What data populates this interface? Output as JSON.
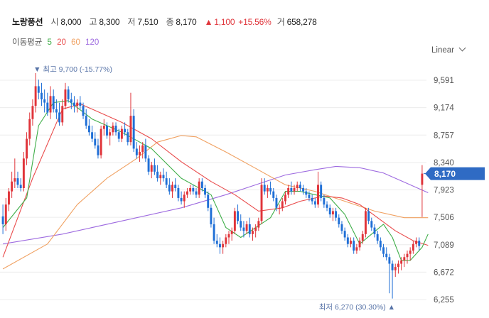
{
  "header": {
    "name": "노랑풍선",
    "open_label": "시",
    "open": "8,000",
    "high_label": "고",
    "high": "8,300",
    "low_label": "저",
    "low": "7,510",
    "close_label": "종",
    "close": "8,170",
    "change_arrow": "▲",
    "change": "1,100",
    "change_pct": "+15.56%",
    "volume_label": "거",
    "volume": "658,278"
  },
  "ma_legend": {
    "label": "이동평균",
    "items": [
      {
        "period": "5",
        "color": "#3fae49"
      },
      {
        "period": "20",
        "color": "#e94b4b"
      },
      {
        "period": "60",
        "color": "#f0a060"
      },
      {
        "period": "120",
        "color": "#9e6be0"
      }
    ]
  },
  "scale_mode": "Linear",
  "colors": {
    "up": "#e0343a",
    "down": "#1f6fd6",
    "badge": "#2f6bc4",
    "annot": "#5773a7",
    "grid": "#ececec"
  },
  "chart_data": {
    "type": "candlestick",
    "y_ticks": [
      "9,591",
      "9,174",
      "8,757",
      "8,340",
      "7,923",
      "7,506",
      "7,089",
      "6,672",
      "6,255"
    ],
    "y_tick_values": [
      9591,
      9174,
      8757,
      8340,
      7923,
      7506,
      7089,
      6672,
      6255
    ],
    "ylim": [
      6150,
      9900
    ],
    "last_price": 8170,
    "last_price_label": "8,170",
    "high_annotation": {
      "arrow": "▼",
      "text": "최고 9,700 (-15.77%)",
      "value": 9700,
      "index": 11
    },
    "low_annotation": {
      "arrow": "▲",
      "text": "최저 6,270 (30.30%)",
      "value": 6270,
      "index": 131
    },
    "candles": [
      [
        7520,
        7700,
        7250,
        7400
      ],
      [
        7400,
        7800,
        7300,
        7700
      ],
      [
        7700,
        7950,
        7600,
        7900
      ],
      [
        7900,
        8200,
        7800,
        8050
      ],
      [
        8050,
        8400,
        7950,
        8100
      ],
      [
        8100,
        8200,
        7950,
        8000
      ],
      [
        8000,
        8100,
        7900,
        7950
      ],
      [
        7950,
        8500,
        7900,
        8400
      ],
      [
        8400,
        8800,
        8300,
        8700
      ],
      [
        8700,
        9100,
        8600,
        9000
      ],
      [
        9000,
        9300,
        8900,
        9200
      ],
      [
        9200,
        9700,
        9100,
        9500
      ],
      [
        9500,
        9600,
        9300,
        9400
      ],
      [
        9400,
        9550,
        9200,
        9300
      ],
      [
        9300,
        9450,
        9100,
        9250
      ],
      [
        9250,
        9400,
        9050,
        9100
      ],
      [
        9100,
        9500,
        9000,
        9350
      ],
      [
        9350,
        9450,
        9100,
        9150
      ],
      [
        9150,
        9300,
        9000,
        9100
      ],
      [
        9100,
        9250,
        8900,
        8950
      ],
      [
        8950,
        9300,
        8900,
        9200
      ],
      [
        9200,
        9550,
        9150,
        9450
      ],
      [
        9450,
        9500,
        9250,
        9300
      ],
      [
        9300,
        9400,
        9150,
        9250
      ],
      [
        9250,
        9350,
        9100,
        9200
      ],
      [
        9200,
        9300,
        9100,
        9250
      ],
      [
        9250,
        9350,
        9150,
        9200
      ],
      [
        9200,
        9250,
        9000,
        9050
      ],
      [
        9050,
        9150,
        8850,
        8900
      ],
      [
        8900,
        9000,
        8750,
        8800
      ],
      [
        8800,
        8900,
        8650,
        8700
      ],
      [
        8700,
        8800,
        8550,
        8600
      ],
      [
        8600,
        8700,
        8400,
        8450
      ],
      [
        8450,
        8900,
        8400,
        8850
      ],
      [
        8850,
        9000,
        8750,
        8900
      ],
      [
        8900,
        8950,
        8700,
        8750
      ],
      [
        8750,
        8850,
        8600,
        8800
      ],
      [
        8800,
        8950,
        8750,
        8900
      ],
      [
        8900,
        8950,
        8750,
        8800
      ],
      [
        8800,
        8850,
        8650,
        8700
      ],
      [
        8700,
        8900,
        8650,
        8850
      ],
      [
        8850,
        8950,
        8750,
        8800
      ],
      [
        8800,
        8850,
        8600,
        8650
      ],
      [
        8650,
        9400,
        8600,
        9050
      ],
      [
        9050,
        9150,
        8500,
        8550
      ],
      [
        8550,
        8650,
        8400,
        8450
      ],
      [
        8450,
        8600,
        8350,
        8500
      ],
      [
        8500,
        8650,
        8400,
        8600
      ],
      [
        8600,
        8700,
        8350,
        8400
      ],
      [
        8400,
        8450,
        8150,
        8200
      ],
      [
        8200,
        8350,
        8100,
        8300
      ],
      [
        8300,
        8400,
        8150,
        8200
      ],
      [
        8200,
        8300,
        8050,
        8100
      ],
      [
        8100,
        8200,
        8000,
        8150
      ],
      [
        8150,
        8250,
        8050,
        8100
      ],
      [
        8100,
        8200,
        7950,
        8000
      ],
      [
        8000,
        8100,
        7850,
        7900
      ],
      [
        7900,
        8050,
        7800,
        8000
      ],
      [
        8000,
        8100,
        7900,
        7950
      ],
      [
        7950,
        8000,
        7750,
        7800
      ],
      [
        7800,
        7900,
        7700,
        7750
      ],
      [
        7750,
        7900,
        7650,
        7850
      ],
      [
        7850,
        7950,
        7800,
        7900
      ],
      [
        7900,
        8000,
        7850,
        7950
      ],
      [
        7950,
        8000,
        7850,
        7900
      ],
      [
        7900,
        7950,
        7800,
        7850
      ],
      [
        7850,
        8100,
        7800,
        8050
      ],
      [
        8050,
        8100,
        7900,
        7950
      ],
      [
        7950,
        8000,
        7800,
        7850
      ],
      [
        7850,
        7900,
        7600,
        7650
      ],
      [
        7650,
        7700,
        7350,
        7400
      ],
      [
        7400,
        7500,
        7100,
        7150
      ],
      [
        7150,
        7250,
        7050,
        7100
      ],
      [
        7100,
        7200,
        6950,
        7050
      ],
      [
        7050,
        7150,
        6950,
        7100
      ],
      [
        7100,
        7250,
        7050,
        7200
      ],
      [
        7200,
        7300,
        7100,
        7250
      ],
      [
        7250,
        7350,
        7150,
        7300
      ],
      [
        7300,
        7650,
        7250,
        7600
      ],
      [
        7600,
        7700,
        7400,
        7450
      ],
      [
        7450,
        7550,
        7300,
        7350
      ],
      [
        7350,
        7450,
        7200,
        7300
      ],
      [
        7300,
        7450,
        7250,
        7400
      ],
      [
        7400,
        7500,
        7200,
        7250
      ],
      [
        7250,
        7350,
        7150,
        7300
      ],
      [
        7300,
        7400,
        7200,
        7350
      ],
      [
        7350,
        7500,
        7300,
        7450
      ],
      [
        7450,
        8100,
        7400,
        8000
      ],
      [
        8000,
        8100,
        7850,
        7900
      ],
      [
        7900,
        8000,
        7800,
        7950
      ],
      [
        7950,
        8050,
        7850,
        7900
      ],
      [
        7900,
        7950,
        7750,
        7800
      ],
      [
        7800,
        7850,
        7600,
        7650
      ],
      [
        7650,
        7700,
        7550,
        7650
      ],
      [
        7650,
        7800,
        7600,
        7750
      ],
      [
        7750,
        7900,
        7700,
        7850
      ],
      [
        7850,
        8000,
        7800,
        7950
      ],
      [
        7950,
        8050,
        7850,
        7900
      ],
      [
        7900,
        8000,
        7850,
        7950
      ],
      [
        7950,
        8050,
        7900,
        8000
      ],
      [
        8000,
        8050,
        7900,
        7950
      ],
      [
        7950,
        8000,
        7850,
        7900
      ],
      [
        7900,
        7950,
        7800,
        7850
      ],
      [
        7850,
        7900,
        7750,
        7800
      ],
      [
        7800,
        7850,
        7700,
        7750
      ],
      [
        7750,
        7800,
        7650,
        7700
      ],
      [
        7700,
        8200,
        7650,
        8000
      ],
      [
        8000,
        8050,
        7750,
        7800
      ],
      [
        7800,
        7850,
        7650,
        7700
      ],
      [
        7700,
        7750,
        7600,
        7650
      ],
      [
        7650,
        7700,
        7500,
        7550
      ],
      [
        7550,
        7650,
        7450,
        7600
      ],
      [
        7600,
        7650,
        7450,
        7500
      ],
      [
        7500,
        7550,
        7350,
        7400
      ],
      [
        7400,
        7450,
        7250,
        7300
      ],
      [
        7300,
        7350,
        7150,
        7200
      ],
      [
        7200,
        7250,
        7050,
        7100
      ],
      [
        7100,
        7200,
        7050,
        7150
      ],
      [
        7150,
        7200,
        6950,
        7000
      ],
      [
        7000,
        7100,
        6950,
        7050
      ],
      [
        7050,
        7200,
        7000,
        7150
      ],
      [
        7150,
        7300,
        7100,
        7250
      ],
      [
        7250,
        7650,
        7200,
        7600
      ],
      [
        7600,
        7650,
        7400,
        7450
      ],
      [
        7450,
        7500,
        7300,
        7350
      ],
      [
        7350,
        7400,
        7200,
        7250
      ],
      [
        7250,
        7300,
        7100,
        7150
      ],
      [
        7150,
        7200,
        7000,
        7050
      ],
      [
        7050,
        7100,
        6900,
        6950
      ],
      [
        6950,
        7050,
        6850,
        6900
      ],
      [
        6900,
        6950,
        6350,
        6800
      ],
      [
        6800,
        6850,
        6270,
        6700
      ],
      [
        6700,
        6800,
        6600,
        6750
      ],
      [
        6750,
        6850,
        6650,
        6800
      ],
      [
        6800,
        6900,
        6700,
        6850
      ],
      [
        6850,
        6950,
        6750,
        6900
      ],
      [
        6900,
        7000,
        6800,
        6950
      ],
      [
        6950,
        7050,
        6850,
        7000
      ],
      [
        7000,
        7150,
        6950,
        7100
      ],
      [
        7100,
        7200,
        7050,
        7150
      ],
      [
        7150,
        7200,
        7000,
        7070
      ],
      [
        8000,
        8300,
        7510,
        8170
      ]
    ],
    "ma5": [
      [
        0,
        7350
      ],
      [
        8,
        7800
      ],
      [
        12,
        8900
      ],
      [
        17,
        9250
      ],
      [
        22,
        9280
      ],
      [
        30,
        9000
      ],
      [
        40,
        8800
      ],
      [
        50,
        8550
      ],
      [
        60,
        8100
      ],
      [
        70,
        7850
      ],
      [
        75,
        7350
      ],
      [
        80,
        7200
      ],
      [
        85,
        7350
      ],
      [
        90,
        7500
      ],
      [
        95,
        7900
      ],
      [
        100,
        7900
      ],
      [
        105,
        7850
      ],
      [
        110,
        7800
      ],
      [
        115,
        7550
      ],
      [
        120,
        7100
      ],
      [
        124,
        7250
      ],
      [
        128,
        7400
      ],
      [
        131,
        7200
      ],
      [
        134,
        6850
      ],
      [
        137,
        6850
      ],
      [
        139,
        6950
      ],
      [
        141,
        7050
      ],
      [
        143,
        7250
      ]
    ],
    "ma20": [
      [
        0,
        6900
      ],
      [
        10,
        8100
      ],
      [
        20,
        9150
      ],
      [
        26,
        9230
      ],
      [
        30,
        9150
      ],
      [
        40,
        8950
      ],
      [
        50,
        8700
      ],
      [
        60,
        8350
      ],
      [
        70,
        8050
      ],
      [
        78,
        7850
      ],
      [
        86,
        7600
      ],
      [
        94,
        7650
      ],
      [
        100,
        7750
      ],
      [
        108,
        7830
      ],
      [
        114,
        7800
      ],
      [
        120,
        7700
      ],
      [
        126,
        7500
      ],
      [
        132,
        7300
      ],
      [
        138,
        7150
      ],
      [
        143,
        7080
      ]
    ],
    "ma60": [
      [
        0,
        6720
      ],
      [
        15,
        7100
      ],
      [
        25,
        7700
      ],
      [
        35,
        8100
      ],
      [
        45,
        8400
      ],
      [
        52,
        8650
      ],
      [
        60,
        8750
      ],
      [
        65,
        8730
      ],
      [
        75,
        8500
      ],
      [
        85,
        8250
      ],
      [
        95,
        8000
      ],
      [
        105,
        7900
      ],
      [
        115,
        7750
      ],
      [
        125,
        7600
      ],
      [
        135,
        7500
      ],
      [
        143,
        7500
      ]
    ],
    "ma120": [
      [
        0,
        7100
      ],
      [
        20,
        7250
      ],
      [
        40,
        7450
      ],
      [
        60,
        7650
      ],
      [
        75,
        7850
      ],
      [
        85,
        8000
      ],
      [
        95,
        8150
      ],
      [
        105,
        8230
      ],
      [
        112,
        8280
      ],
      [
        120,
        8260
      ],
      [
        128,
        8180
      ],
      [
        136,
        8020
      ],
      [
        143,
        7880
      ]
    ]
  }
}
